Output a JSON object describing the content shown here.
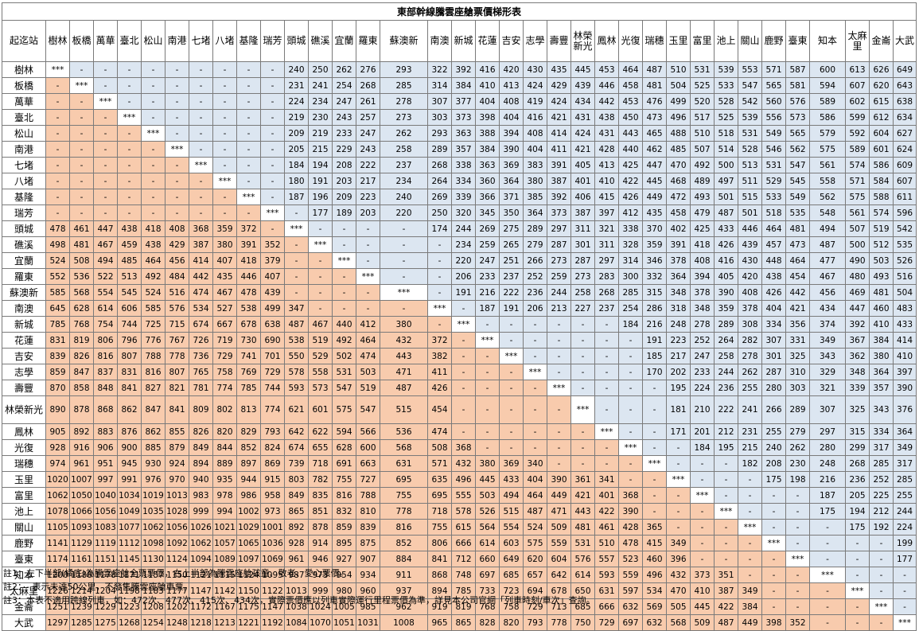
{
  "title": "東部幹線騰雲座艙票價梯形表",
  "corner_label": "起迄站",
  "stations": [
    "樹林",
    "板橋",
    "萬華",
    "臺北",
    "松山",
    "南港",
    "七堵",
    "八堵",
    "基隆",
    "瑞芳",
    "頭城",
    "礁溪",
    "宜蘭",
    "羅東",
    "蘇澳新",
    "南澳",
    "新城",
    "花蓮",
    "吉安",
    "志學",
    "壽豐",
    "林榮新光",
    "鳳林",
    "光復",
    "瑞穗",
    "玉里",
    "富里",
    "池上",
    "關山",
    "鹿野",
    "臺東",
    "知本",
    "太麻里",
    "金崙",
    "大武"
  ],
  "rows": [
    [
      "***",
      "-",
      "-",
      "-",
      "-",
      "-",
      "-",
      "-",
      "-",
      "-",
      "240",
      "250",
      "262",
      "276",
      "293",
      "322",
      "392",
      "416",
      "420",
      "430",
      "435",
      "445",
      "453",
      "464",
      "487",
      "510",
      "531",
      "539",
      "553",
      "571",
      "587",
      "600",
      "613",
      "626",
      "649"
    ],
    [
      "-",
      "***",
      "-",
      "-",
      "-",
      "-",
      "-",
      "-",
      "-",
      "-",
      "231",
      "241",
      "254",
      "268",
      "285",
      "314",
      "384",
      "410",
      "413",
      "424",
      "429",
      "439",
      "446",
      "458",
      "481",
      "504",
      "525",
      "533",
      "547",
      "565",
      "581",
      "594",
      "607",
      "620",
      "643"
    ],
    [
      "-",
      "-",
      "***",
      "-",
      "-",
      "-",
      "-",
      "-",
      "-",
      "-",
      "224",
      "234",
      "247",
      "261",
      "278",
      "307",
      "377",
      "404",
      "408",
      "419",
      "424",
      "434",
      "442",
      "453",
      "476",
      "499",
      "520",
      "528",
      "542",
      "560",
      "576",
      "589",
      "602",
      "615",
      "638"
    ],
    [
      "-",
      "-",
      "-",
      "***",
      "-",
      "-",
      "-",
      "-",
      "-",
      "-",
      "219",
      "230",
      "243",
      "257",
      "273",
      "303",
      "373",
      "398",
      "404",
      "416",
      "421",
      "431",
      "438",
      "450",
      "473",
      "496",
      "517",
      "525",
      "539",
      "556",
      "573",
      "586",
      "599",
      "612",
      "634"
    ],
    [
      "-",
      "-",
      "-",
      "-",
      "***",
      "-",
      "-",
      "-",
      "-",
      "-",
      "209",
      "219",
      "233",
      "247",
      "262",
      "293",
      "363",
      "388",
      "394",
      "408",
      "414",
      "424",
      "431",
      "443",
      "465",
      "488",
      "510",
      "518",
      "531",
      "549",
      "565",
      "579",
      "592",
      "604",
      "627"
    ],
    [
      "-",
      "-",
      "-",
      "-",
      "-",
      "***",
      "-",
      "-",
      "-",
      "-",
      "205",
      "215",
      "229",
      "243",
      "258",
      "289",
      "357",
      "384",
      "390",
      "404",
      "411",
      "421",
      "428",
      "440",
      "462",
      "485",
      "507",
      "514",
      "528",
      "546",
      "562",
      "575",
      "589",
      "601",
      "624"
    ],
    [
      "-",
      "-",
      "-",
      "-",
      "-",
      "-",
      "***",
      "-",
      "-",
      "-",
      "184",
      "194",
      "208",
      "222",
      "237",
      "268",
      "338",
      "363",
      "369",
      "383",
      "391",
      "405",
      "413",
      "425",
      "447",
      "470",
      "492",
      "500",
      "513",
      "531",
      "547",
      "561",
      "574",
      "586",
      "609"
    ],
    [
      "-",
      "-",
      "-",
      "-",
      "-",
      "-",
      "-",
      "***",
      "-",
      "-",
      "180",
      "191",
      "203",
      "217",
      "234",
      "264",
      "334",
      "360",
      "364",
      "380",
      "387",
      "401",
      "410",
      "422",
      "445",
      "468",
      "489",
      "497",
      "511",
      "529",
      "545",
      "558",
      "571",
      "584",
      "607"
    ],
    [
      "-",
      "-",
      "-",
      "-",
      "-",
      "-",
      "-",
      "-",
      "***",
      "-",
      "187",
      "196",
      "209",
      "223",
      "240",
      "269",
      "339",
      "366",
      "371",
      "385",
      "392",
      "406",
      "415",
      "426",
      "449",
      "472",
      "493",
      "501",
      "515",
      "533",
      "549",
      "562",
      "575",
      "588",
      "611"
    ],
    [
      "-",
      "-",
      "-",
      "-",
      "-",
      "-",
      "-",
      "-",
      "-",
      "***",
      "-",
      "177",
      "189",
      "203",
      "220",
      "250",
      "320",
      "345",
      "350",
      "364",
      "373",
      "387",
      "397",
      "412",
      "435",
      "458",
      "479",
      "487",
      "501",
      "518",
      "535",
      "548",
      "561",
      "574",
      "596"
    ],
    [
      "478",
      "461",
      "447",
      "438",
      "418",
      "408",
      "368",
      "359",
      "372",
      "-",
      "***",
      "-",
      "-",
      "-",
      "-",
      "174",
      "244",
      "269",
      "275",
      "289",
      "297",
      "311",
      "321",
      "338",
      "370",
      "402",
      "425",
      "433",
      "446",
      "464",
      "481",
      "494",
      "507",
      "519",
      "542"
    ],
    [
      "498",
      "481",
      "467",
      "459",
      "438",
      "429",
      "387",
      "380",
      "391",
      "352",
      "-",
      "***",
      "-",
      "-",
      "-",
      "-",
      "234",
      "259",
      "265",
      "279",
      "287",
      "301",
      "311",
      "328",
      "359",
      "391",
      "418",
      "426",
      "439",
      "457",
      "473",
      "487",
      "500",
      "512",
      "535"
    ],
    [
      "524",
      "508",
      "494",
      "485",
      "464",
      "456",
      "414",
      "407",
      "418",
      "379",
      "-",
      "-",
      "***",
      "-",
      "-",
      "-",
      "220",
      "247",
      "251",
      "266",
      "273",
      "287",
      "297",
      "314",
      "346",
      "378",
      "408",
      "416",
      "430",
      "448",
      "464",
      "477",
      "490",
      "503",
      "526"
    ],
    [
      "552",
      "536",
      "522",
      "513",
      "492",
      "484",
      "442",
      "435",
      "446",
      "407",
      "-",
      "-",
      "-",
      "***",
      "-",
      "-",
      "206",
      "233",
      "237",
      "252",
      "259",
      "273",
      "283",
      "300",
      "332",
      "364",
      "394",
      "405",
      "420",
      "438",
      "454",
      "467",
      "480",
      "493",
      "516"
    ],
    [
      "585",
      "568",
      "554",
      "545",
      "524",
      "516",
      "474",
      "467",
      "478",
      "439",
      "-",
      "-",
      "-",
      "-",
      "***",
      "-",
      "191",
      "216",
      "222",
      "236",
      "244",
      "258",
      "268",
      "285",
      "315",
      "348",
      "378",
      "390",
      "408",
      "426",
      "442",
      "456",
      "469",
      "481",
      "504"
    ],
    [
      "645",
      "628",
      "614",
      "606",
      "585",
      "576",
      "534",
      "527",
      "538",
      "499",
      "347",
      "-",
      "-",
      "-",
      "-",
      "***",
      "-",
      "187",
      "191",
      "206",
      "213",
      "227",
      "237",
      "254",
      "286",
      "318",
      "348",
      "359",
      "378",
      "404",
      "421",
      "434",
      "447",
      "460",
      "483"
    ],
    [
      "785",
      "768",
      "754",
      "744",
      "725",
      "715",
      "674",
      "667",
      "678",
      "638",
      "487",
      "467",
      "440",
      "412",
      "380",
      "-",
      "***",
      "-",
      "-",
      "-",
      "-",
      "-",
      "-",
      "184",
      "216",
      "248",
      "278",
      "289",
      "308",
      "334",
      "356",
      "374",
      "392",
      "410",
      "433"
    ],
    [
      "831",
      "819",
      "806",
      "796",
      "776",
      "767",
      "726",
      "719",
      "730",
      "690",
      "538",
      "519",
      "492",
      "464",
      "432",
      "372",
      "-",
      "***",
      "-",
      "-",
      "-",
      "-",
      "-",
      "-",
      "191",
      "223",
      "252",
      "264",
      "282",
      "307",
      "331",
      "349",
      "367",
      "384",
      "414"
    ],
    [
      "839",
      "826",
      "816",
      "807",
      "788",
      "778",
      "736",
      "729",
      "741",
      "701",
      "550",
      "529",
      "502",
      "474",
      "443",
      "382",
      "-",
      "-",
      "***",
      "-",
      "-",
      "-",
      "-",
      "-",
      "185",
      "217",
      "247",
      "258",
      "278",
      "301",
      "325",
      "343",
      "362",
      "380",
      "410"
    ],
    [
      "859",
      "847",
      "837",
      "831",
      "816",
      "807",
      "765",
      "758",
      "769",
      "729",
      "578",
      "558",
      "531",
      "503",
      "471",
      "411",
      "-",
      "-",
      "-",
      "***",
      "-",
      "-",
      "-",
      "-",
      "170",
      "202",
      "233",
      "244",
      "262",
      "287",
      "310",
      "329",
      "348",
      "364",
      "397"
    ],
    [
      "870",
      "858",
      "848",
      "841",
      "827",
      "821",
      "781",
      "774",
      "785",
      "744",
      "593",
      "573",
      "547",
      "519",
      "487",
      "426",
      "-",
      "-",
      "-",
      "-",
      "***",
      "-",
      "-",
      "-",
      "-",
      "195",
      "224",
      "236",
      "255",
      "280",
      "303",
      "321",
      "339",
      "357",
      "390"
    ],
    [
      "890",
      "878",
      "868",
      "862",
      "847",
      "841",
      "809",
      "802",
      "813",
      "774",
      "621",
      "601",
      "575",
      "547",
      "515",
      "454",
      "-",
      "-",
      "-",
      "-",
      "-",
      "***",
      "-",
      "-",
      "-",
      "181",
      "210",
      "222",
      "241",
      "266",
      "289",
      "307",
      "325",
      "343",
      "376"
    ],
    [
      "905",
      "892",
      "883",
      "876",
      "862",
      "855",
      "826",
      "820",
      "829",
      "793",
      "642",
      "622",
      "594",
      "566",
      "536",
      "474",
      "-",
      "-",
      "-",
      "-",
      "-",
      "-",
      "***",
      "-",
      "-",
      "171",
      "201",
      "212",
      "231",
      "255",
      "279",
      "297",
      "315",
      "334",
      "364"
    ],
    [
      "928",
      "916",
      "906",
      "900",
      "885",
      "879",
      "849",
      "844",
      "852",
      "824",
      "674",
      "655",
      "628",
      "600",
      "568",
      "508",
      "368",
      "-",
      "-",
      "-",
      "-",
      "-",
      "-",
      "***",
      "-",
      "-",
      "184",
      "195",
      "215",
      "240",
      "262",
      "280",
      "299",
      "317",
      "349"
    ],
    [
      "974",
      "961",
      "951",
      "945",
      "930",
      "924",
      "894",
      "889",
      "897",
      "869",
      "739",
      "718",
      "691",
      "663",
      "631",
      "571",
      "432",
      "380",
      "369",
      "340",
      "-",
      "-",
      "-",
      "-",
      "***",
      "-",
      "-",
      "-",
      "182",
      "208",
      "230",
      "248",
      "268",
      "285",
      "317"
    ],
    [
      "1020",
      "1007",
      "997",
      "991",
      "976",
      "970",
      "940",
      "935",
      "944",
      "915",
      "803",
      "782",
      "755",
      "727",
      "695",
      "635",
      "496",
      "445",
      "433",
      "404",
      "390",
      "361",
      "341",
      "-",
      "-",
      "***",
      "-",
      "-",
      "-",
      "175",
      "198",
      "216",
      "236",
      "252",
      "285"
    ],
    [
      "1062",
      "1050",
      "1040",
      "1034",
      "1019",
      "1013",
      "983",
      "978",
      "986",
      "958",
      "849",
      "835",
      "816",
      "788",
      "755",
      "695",
      "555",
      "503",
      "494",
      "464",
      "449",
      "421",
      "401",
      "368",
      "-",
      "-",
      "***",
      "-",
      "-",
      "-",
      "-",
      "187",
      "205",
      "225",
      "255"
    ],
    [
      "1078",
      "1066",
      "1056",
      "1049",
      "1035",
      "1028",
      "999",
      "994",
      "1002",
      "973",
      "865",
      "851",
      "832",
      "810",
      "778",
      "718",
      "578",
      "526",
      "515",
      "487",
      "471",
      "443",
      "422",
      "390",
      "-",
      "-",
      "-",
      "***",
      "-",
      "-",
      "-",
      "175",
      "194",
      "212",
      "244"
    ],
    [
      "1105",
      "1093",
      "1083",
      "1077",
      "1062",
      "1056",
      "1026",
      "1021",
      "1029",
      "1001",
      "892",
      "878",
      "859",
      "839",
      "816",
      "755",
      "615",
      "564",
      "554",
      "524",
      "509",
      "481",
      "461",
      "428",
      "365",
      "-",
      "-",
      "-",
      "***",
      "-",
      "-",
      "-",
      "175",
      "192",
      "224"
    ],
    [
      "1141",
      "1129",
      "1119",
      "1112",
      "1098",
      "1092",
      "1062",
      "1057",
      "1065",
      "1036",
      "928",
      "914",
      "895",
      "875",
      "852",
      "806",
      "666",
      "614",
      "603",
      "575",
      "559",
      "531",
      "510",
      "478",
      "415",
      "349",
      "-",
      "-",
      "-",
      "***",
      "-",
      "-",
      "-",
      "-",
      "199"
    ],
    [
      "1174",
      "1161",
      "1151",
      "1145",
      "1130",
      "1124",
      "1094",
      "1089",
      "1097",
      "1069",
      "961",
      "946",
      "927",
      "907",
      "884",
      "841",
      "712",
      "660",
      "649",
      "620",
      "604",
      "576",
      "557",
      "523",
      "460",
      "396",
      "-",
      "-",
      "-",
      "-",
      "***",
      "-",
      "-",
      "-",
      "177"
    ],
    [
      "1200",
      "1188",
      "1178",
      "1171",
      "1157",
      "1150",
      "1121",
      "1115",
      "1124",
      "1095",
      "987",
      "973",
      "954",
      "934",
      "911",
      "868",
      "748",
      "697",
      "685",
      "657",
      "642",
      "614",
      "593",
      "559",
      "496",
      "432",
      "373",
      "351",
      "-",
      "-",
      "-",
      "***",
      "-",
      "-",
      "-"
    ],
    [
      "1226",
      "1214",
      "1204",
      "1198",
      "1183",
      "1177",
      "1147",
      "1142",
      "1150",
      "1122",
      "1013",
      "999",
      "980",
      "960",
      "937",
      "894",
      "785",
      "733",
      "723",
      "694",
      "678",
      "650",
      "631",
      "597",
      "534",
      "470",
      "410",
      "387",
      "349",
      "-",
      "-",
      "-",
      "***",
      "-",
      "-"
    ],
    [
      "1251",
      "1239",
      "1229",
      "1223",
      "1208",
      "1202",
      "1172",
      "1167",
      "1175",
      "1147",
      "1038",
      "1024",
      "1005",
      "985",
      "962",
      "919",
      "819",
      "768",
      "758",
      "729",
      "713",
      "685",
      "666",
      "632",
      "569",
      "505",
      "445",
      "422",
      "384",
      "-",
      "-",
      "-",
      "-",
      "***",
      "-"
    ],
    [
      "1297",
      "1285",
      "1275",
      "1268",
      "1254",
      "1248",
      "1218",
      "1213",
      "1221",
      "1192",
      "1084",
      "1070",
      "1051",
      "1031",
      "1008",
      "965",
      "865",
      "828",
      "820",
      "793",
      "778",
      "750",
      "729",
      "697",
      "632",
      "568",
      "509",
      "487",
      "449",
      "398",
      "352",
      "-",
      "-",
      "-",
      "***"
    ]
  ],
  "notes": [
    "註1：左下半部(橘底)為騰雲座艙全票票價，右上半部為騰雲座艙孩童、敬老、愛心票價。",
    "註2：- 表示未達50公里，不發售騰雲座艙車票。",
    "註3：本表不適用跨線列車，如：472次、477次、415次、434次，實際票價應以列車實際運行里程票價為準，詳見本公司官網「列車時刻/車次」查詢。"
  ],
  "colors": {
    "full_fare_bg": "#f8cbad",
    "discount_fare_bg": "#dce6f1",
    "diagonal_bg": "#ffffff",
    "border": "#7a7a7a"
  }
}
